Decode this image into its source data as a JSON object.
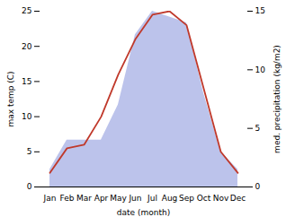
{
  "chart_data": {
    "type": "line",
    "xlabel": "date (month)",
    "ylabel": "max temp (C)",
    "y2label": "med. precipitation (kg/m2)",
    "categories": [
      "Jan",
      "Feb",
      "Mar",
      "Apr",
      "May",
      "Jun",
      "Jul",
      "Aug",
      "Sep",
      "Oct",
      "Nov",
      "Dec"
    ],
    "series": [
      {
        "type": "area",
        "axis": "y2",
        "color": "#b0b8e8",
        "values": [
          1.5,
          4,
          4,
          4,
          7,
          13,
          15,
          14.5,
          14,
          8,
          3,
          1.5
        ]
      },
      {
        "type": "line",
        "color": "#c0392b",
        "values": [
          2,
          5.5,
          6,
          10,
          16,
          21,
          24.5,
          25,
          23,
          14,
          5,
          2
        ]
      }
    ],
    "ylim": [
      0,
      25
    ],
    "yticks": [
      0,
      5,
      10,
      15,
      20,
      25
    ],
    "y2lim": [
      0,
      15
    ],
    "y2ticks": [
      0,
      5,
      10,
      15
    ],
    "grid": false
  }
}
